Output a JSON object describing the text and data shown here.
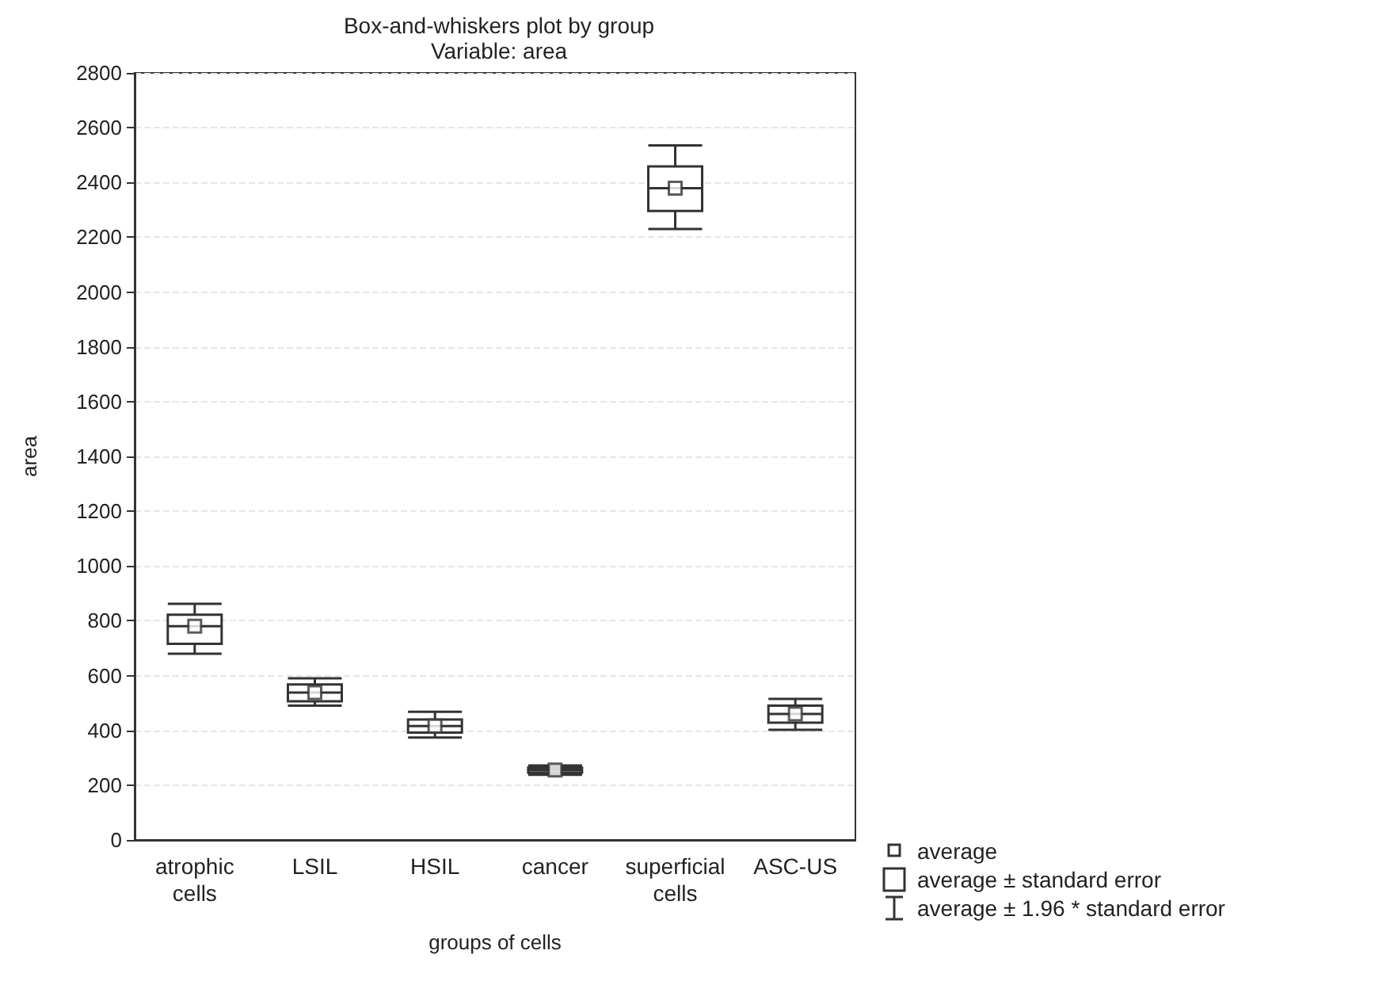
{
  "chart_data": {
    "type": "box",
    "title": "Box-and-whiskers plot by group",
    "subtitle": "Variable: area",
    "xlabel": "groups of cells",
    "ylabel": "area",
    "categories": [
      "atrophic\ncells",
      "LSIL",
      "HSIL",
      "cancer",
      "superficial\ncells",
      "ASC-US"
    ],
    "series": [
      {
        "color": "#333333",
        "boxes": [
          {
            "low": 680,
            "q1": 716,
            "median": 780,
            "q3": 822,
            "high": 862,
            "mean": 780
          },
          {
            "low": 490,
            "q1": 506,
            "median": 538,
            "q3": 568,
            "high": 590,
            "mean": 538
          },
          {
            "low": 374,
            "q1": 392,
            "median": 416,
            "q3": 440,
            "high": 468,
            "mean": 416
          },
          {
            "low": 238,
            "q1": 246,
            "median": 255,
            "q3": 264,
            "high": 272,
            "mean": 255
          },
          {
            "low": 2230,
            "q1": 2296,
            "median": 2379,
            "q3": 2459,
            "high": 2535,
            "mean": 2379
          },
          {
            "low": 402,
            "q1": 428,
            "median": 460,
            "q3": 490,
            "high": 515,
            "mean": 460
          }
        ]
      }
    ],
    "ylim": [
      0,
      2800
    ],
    "yticks": [
      0,
      200,
      400,
      600,
      800,
      1000,
      1200,
      1400,
      1600,
      1800,
      2000,
      2200,
      2400,
      2600,
      2800
    ],
    "grid": "y",
    "marker": "square",
    "annotations": [
      "average",
      "average ± standard error",
      "average ± 1.96 * standard error"
    ]
  }
}
